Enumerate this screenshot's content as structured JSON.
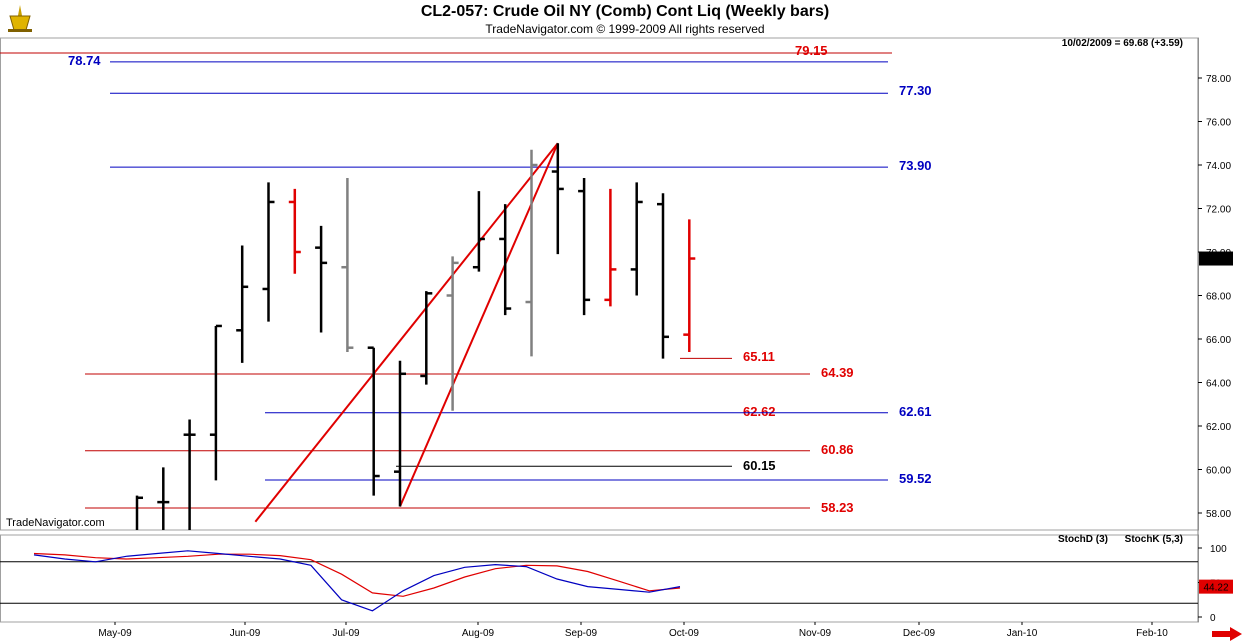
{
  "header": {
    "title": "CL2-057:  Crude Oil NY (Comb) Cont Liq  (Weekly bars)",
    "subtitle": "TradeNavigator.com © 1999-2009 All rights reserved"
  },
  "watermark": "TradeNavigator.com",
  "last_quote": "10/02/2009 = 69.68 (+3.59)",
  "last_price_tag": "69.68",
  "stoch_value_tag": "44.22",
  "colors": {
    "black": "#000000",
    "gray": "#808080",
    "red": "#e00000",
    "blue": "#0000c0",
    "darkred": "#c00000",
    "tag_red": "#e00000"
  },
  "icons": {
    "logo": "navigator-logo-icon",
    "scroll": "red-right-arrow-icon"
  },
  "chart_data": [
    {
      "type": "ohlc",
      "title": "CL2-057:  Crude Oil NY (Comb) Cont Liq  (Weekly bars)",
      "ylim": [
        57.0,
        80.5
      ],
      "yticks": [
        58,
        60,
        62,
        64,
        66,
        68,
        70,
        72,
        74,
        76,
        78
      ],
      "ytick_labels": [
        "58.00",
        "60.00",
        "62.00",
        "64.00",
        "66.00",
        "68.00",
        "70.00",
        "72.00",
        "74.00",
        "76.00",
        "78.00"
      ],
      "x_labels": [
        "May-09",
        "Jun-09",
        "Jul-09",
        "Aug-09",
        "Sep-09",
        "Oct-09",
        "Nov-09",
        "Dec-09",
        "Jan-10",
        "Feb-10"
      ],
      "bars": [
        {
          "o": 56.8,
          "h": 58.8,
          "l": 56.0,
          "c": 58.7,
          "color": "black"
        },
        {
          "o": 58.5,
          "h": 60.1,
          "l": 56.6,
          "c": 58.5,
          "color": "black"
        },
        {
          "o": 61.6,
          "h": 62.3,
          "l": 56.4,
          "c": 61.6,
          "color": "black"
        },
        {
          "o": 61.6,
          "h": 66.6,
          "l": 59.5,
          "c": 66.6,
          "color": "black"
        },
        {
          "o": 66.4,
          "h": 70.3,
          "l": 64.9,
          "c": 68.4,
          "color": "black"
        },
        {
          "o": 68.3,
          "h": 73.2,
          "l": 66.8,
          "c": 72.3,
          "color": "black"
        },
        {
          "o": 72.3,
          "h": 72.9,
          "l": 69.0,
          "c": 70.0,
          "color": "red"
        },
        {
          "o": 70.2,
          "h": 71.2,
          "l": 66.3,
          "c": 69.5,
          "color": "black"
        },
        {
          "o": 69.3,
          "h": 73.4,
          "l": 65.4,
          "c": 65.6,
          "color": "gray"
        },
        {
          "o": 65.6,
          "h": 65.6,
          "l": 58.8,
          "c": 59.7,
          "color": "black"
        },
        {
          "o": 59.9,
          "h": 65.0,
          "l": 58.3,
          "c": 64.4,
          "color": "black"
        },
        {
          "o": 64.3,
          "h": 68.2,
          "l": 63.9,
          "c": 68.1,
          "color": "black"
        },
        {
          "o": 68.0,
          "h": 69.8,
          "l": 62.7,
          "c": 69.5,
          "color": "gray"
        },
        {
          "o": 69.3,
          "h": 72.8,
          "l": 69.1,
          "c": 70.6,
          "color": "black"
        },
        {
          "o": 70.6,
          "h": 72.2,
          "l": 67.1,
          "c": 67.4,
          "color": "black"
        },
        {
          "o": 67.7,
          "h": 74.7,
          "l": 65.2,
          "c": 74.0,
          "color": "gray"
        },
        {
          "o": 73.7,
          "h": 75.0,
          "l": 69.9,
          "c": 72.9,
          "color": "black"
        },
        {
          "o": 72.8,
          "h": 73.4,
          "l": 67.1,
          "c": 67.8,
          "color": "black"
        },
        {
          "o": 67.8,
          "h": 72.9,
          "l": 67.5,
          "c": 69.2,
          "color": "red"
        },
        {
          "o": 69.2,
          "h": 73.2,
          "l": 68.0,
          "c": 72.3,
          "color": "black"
        },
        {
          "o": 72.2,
          "h": 72.7,
          "l": 65.1,
          "c": 66.1,
          "color": "black"
        },
        {
          "o": 66.2,
          "h": 71.5,
          "l": 65.4,
          "c": 69.7,
          "color": "red"
        }
      ],
      "levels": [
        {
          "value": 79.15,
          "label": "79.15",
          "color": "darkred",
          "text_color": "red"
        },
        {
          "value": 78.74,
          "label": "78.74",
          "color": "blue",
          "text_color": "blue"
        },
        {
          "value": 77.3,
          "label": "77.30",
          "color": "blue",
          "text_color": "blue"
        },
        {
          "value": 73.9,
          "label": "73.90",
          "color": "blue",
          "text_color": "blue"
        },
        {
          "value": 65.11,
          "label": "65.11",
          "color": "darkred",
          "text_color": "red"
        },
        {
          "value": 64.39,
          "label": "64.39",
          "color": "darkred",
          "text_color": "red"
        },
        {
          "value": 62.62,
          "label": "62.62",
          "color": "blue",
          "text_color": "red"
        },
        {
          "value": 62.61,
          "label": "62.61",
          "color": "blue",
          "text_color": "blue"
        },
        {
          "value": 60.86,
          "label": "60.86",
          "color": "darkred",
          "text_color": "red"
        },
        {
          "value": 60.15,
          "label": "60.15",
          "color": "black",
          "text_color": "black"
        },
        {
          "value": 59.52,
          "label": "59.52",
          "color": "blue",
          "text_color": "blue"
        },
        {
          "value": 58.23,
          "label": "58.23",
          "color": "darkred",
          "text_color": "red"
        }
      ],
      "trendlines": [
        {
          "from": {
            "bar": 4.5,
            "y": 57.6
          },
          "to": {
            "bar": 16,
            "y": 75.0
          },
          "color": "red"
        },
        {
          "from": {
            "bar": 10,
            "y": 58.3
          },
          "to": {
            "bar": 16,
            "y": 75.0
          },
          "color": "red"
        }
      ]
    },
    {
      "type": "line",
      "legend": [
        "StochD (3)",
        "StochK (5,3)"
      ],
      "ylim": [
        0,
        100
      ],
      "yticks": [
        0,
        50,
        100
      ],
      "levels": [
        80,
        20
      ],
      "series": [
        {
          "name": "StochD (3)",
          "color": "red",
          "values": [
            92,
            90,
            86,
            84,
            86,
            88,
            91,
            91,
            89,
            83,
            62,
            35,
            30,
            42,
            58,
            70,
            75,
            74,
            66,
            52,
            38,
            42
          ]
        },
        {
          "name": "StochK (5,3)",
          "color": "blue",
          "values": [
            90,
            84,
            80,
            88,
            92,
            96,
            92,
            88,
            84,
            75,
            25,
            9,
            38,
            60,
            72,
            76,
            73,
            55,
            44,
            40,
            36,
            44
          ]
        }
      ]
    }
  ]
}
